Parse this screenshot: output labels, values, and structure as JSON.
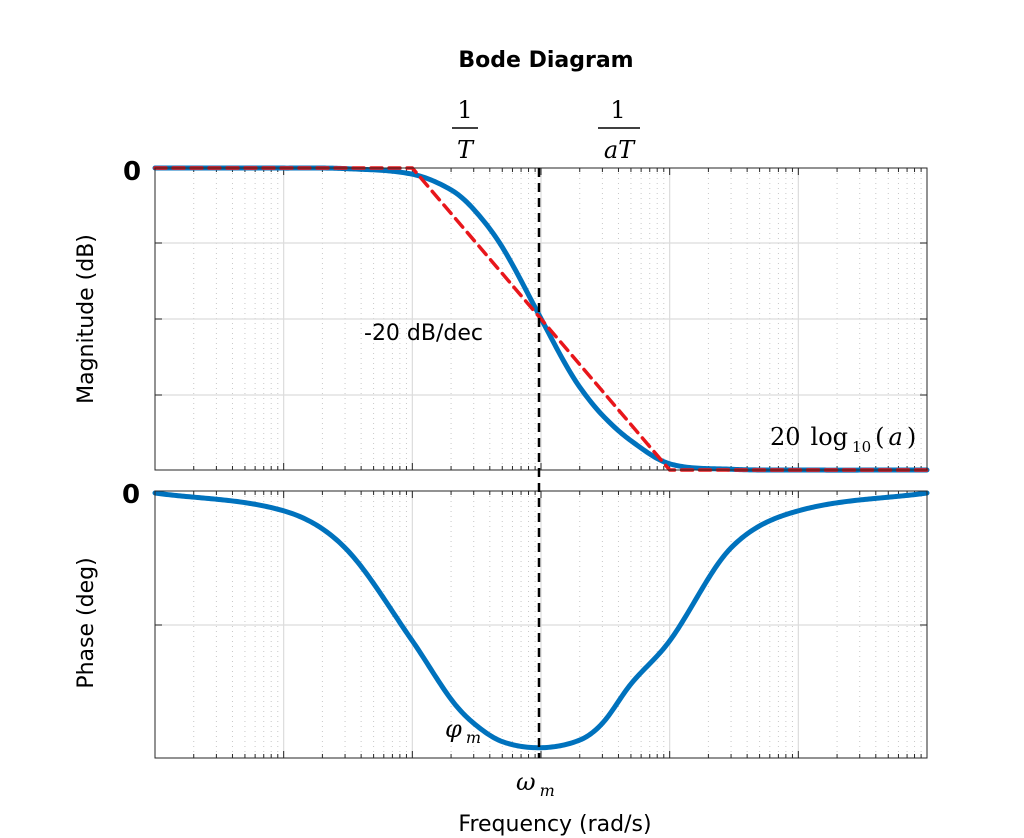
{
  "chart_data": {
    "type": "line",
    "title": "Bode Diagram",
    "xlabel": "Frequency  (rad/s)",
    "x_scale": "log",
    "grid": true,
    "colors": {
      "response": "#0072BD",
      "asymptote": "#E8161B",
      "marker_line": "#000000"
    },
    "panels": [
      {
        "name": "magnitude",
        "ylabel": "Magnitude (dB)",
        "y_tick_label": "0",
        "series": [
          {
            "style": "solid",
            "color": "#0072BD",
            "x": [
              0.001,
              0.01,
              0.03,
              0.1,
              0.2,
              0.3,
              0.5,
              1,
              1.5,
              2,
              3,
              5,
              10,
              30,
              100,
              1000
            ],
            "y": [
              0,
              -0.004,
              -0.04,
              -0.41,
              -1.45,
              -2.74,
              -5.24,
              -9.97,
              -12.78,
              -14.51,
              -16.37,
              -18.06,
              -19.59,
              -19.95,
              -20,
              -20
            ]
          },
          {
            "style": "dashed",
            "color": "#E8161B",
            "x": [
              0.001,
              0.1,
              10,
              1000
            ],
            "y": [
              0,
              0,
              -20,
              -20
            ]
          }
        ]
      },
      {
        "name": "phase",
        "ylabel": "Phase (deg)",
        "y_tick_label": "0",
        "series": [
          {
            "style": "solid",
            "color": "#0072BD",
            "x": [
              0.001,
              0.01,
              0.03,
              0.1,
              0.2,
              0.3,
              0.5,
              1,
              2,
              3,
              5,
              10,
              30,
              100,
              1000
            ],
            "y": [
              -0.53,
              -5.2,
              -14.9,
              -39.3,
              -54.6,
              -60.9,
              -65.7,
              -67.3,
              -65.3,
              -60.9,
              -50.6,
              -39.3,
              -14.9,
              -5.2,
              -0.53
            ]
          }
        ]
      }
    ],
    "x_markers": {
      "break_low": "1/T",
      "break_high": "1/aT",
      "center": "ω_m"
    },
    "annotations": {
      "slope": "-20 dB/dec",
      "high_freq_gain": "20 log10(a)",
      "phase_min": "φ_m"
    }
  },
  "labels": {
    "title": "Bode Diagram",
    "xlabel": "Frequency  (rad/s)",
    "ylabel_mag": "Magnitude (dB)",
    "ylabel_phase": "Phase (deg)",
    "ytick_mag_zero": "0",
    "ytick_phase_zero": "0",
    "slope": "-20 dB/dec",
    "gain_coef": "20",
    "gain_fn": "log",
    "gain_sub": "10",
    "gain_arg_open": "(",
    "gain_arg": "a",
    "gain_arg_close": ")",
    "break_low_num": "1",
    "break_low_den": "T",
    "break_high_num": "1",
    "break_high_den": "aT",
    "omega": "ω",
    "omega_sub": "m",
    "phi": "φ",
    "phi_sub": "m"
  }
}
